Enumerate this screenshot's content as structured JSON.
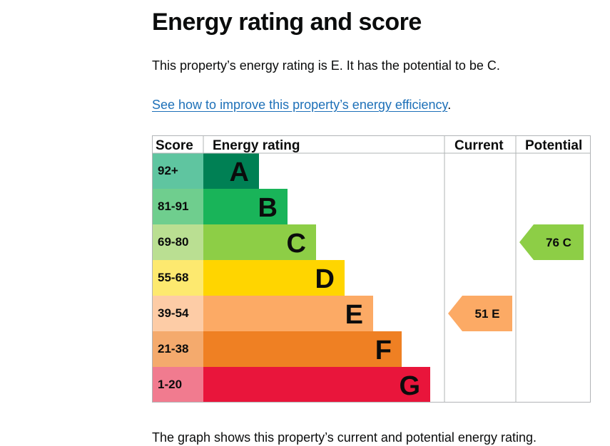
{
  "page": {
    "heading": "Energy rating and score",
    "intro": "This property’s energy rating is E. It has the potential to be C.",
    "link_text": "See how to improve this property’s energy efficiency",
    "link_suffix": ".",
    "footer_text": "The graph shows this property’s current and potential energy rating."
  },
  "chart_data": {
    "type": "bar",
    "columns": [
      "Score",
      "Energy rating",
      "Current",
      "Potential"
    ],
    "bands": [
      {
        "score": "92+",
        "rating": "A",
        "bar_color": "#008054",
        "score_color": "#5fc5a0"
      },
      {
        "score": "81-91",
        "rating": "B",
        "bar_color": "#19b459",
        "score_color": "#6fce8e"
      },
      {
        "score": "69-80",
        "rating": "C",
        "bar_color": "#8dce46",
        "score_color": "#badf92"
      },
      {
        "score": "55-68",
        "rating": "D",
        "bar_color": "#ffd500",
        "score_color": "#fde96f"
      },
      {
        "score": "39-54",
        "rating": "E",
        "bar_color": "#fcaa65",
        "score_color": "#fdcca6"
      },
      {
        "score": "21-38",
        "rating": "F",
        "bar_color": "#ef8023",
        "score_color": "#f4aa6d"
      },
      {
        "score": "1-20",
        "rating": "G",
        "bar_color": "#e9153b",
        "score_color": "#f17b8f"
      }
    ],
    "current": {
      "value": 51,
      "rating": "E",
      "label": "51 E",
      "color": "#fcaa65"
    },
    "potential": {
      "value": 76,
      "rating": "C",
      "label": "76 C",
      "color": "#8dce46"
    }
  }
}
